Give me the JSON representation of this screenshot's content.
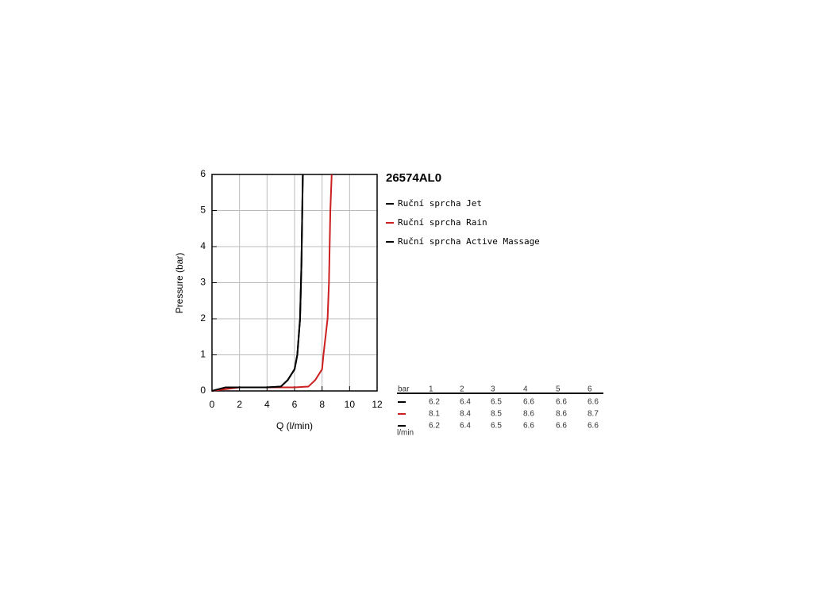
{
  "chart_data": {
    "type": "line",
    "title": "26574AL0",
    "xlabel": "Q (l/min)",
    "ylabel": "Pressure (bar)",
    "xlim": [
      0,
      12
    ],
    "ylim": [
      0,
      6
    ],
    "xticks": [
      0,
      2,
      4,
      6,
      8,
      10,
      12
    ],
    "yticks": [
      0,
      1,
      2,
      3,
      4,
      5,
      6
    ],
    "grid": true,
    "series": [
      {
        "name": "Ruční sprcha Jet",
        "color": "#000000",
        "x": [
          0,
          1,
          2,
          3,
          4,
          5,
          5.5,
          6,
          6.2,
          6.4,
          6.5,
          6.6
        ],
        "values": [
          0,
          0.1,
          0.1,
          0.1,
          0.1,
          0.12,
          0.3,
          0.6,
          1,
          2,
          3.5,
          6
        ]
      },
      {
        "name": "Ruční sprcha Rain",
        "color": "#cc1f1f",
        "x": [
          0,
          1,
          2,
          3,
          4,
          5,
          6,
          7,
          7.5,
          8,
          8.1,
          8.4,
          8.5,
          8.6,
          8.7
        ],
        "values": [
          0,
          0.05,
          0.1,
          0.1,
          0.1,
          0.1,
          0.1,
          0.12,
          0.3,
          0.6,
          1,
          2,
          3,
          5,
          6
        ]
      },
      {
        "name": "Ruční sprcha Active Massage",
        "color": "#000000",
        "x": [
          0,
          1,
          2,
          3,
          4,
          5,
          5.5,
          6,
          6.2,
          6.4,
          6.5,
          6.6
        ],
        "values": [
          0,
          0.1,
          0.1,
          0.1,
          0.1,
          0.12,
          0.3,
          0.6,
          1,
          2,
          3.5,
          6
        ]
      }
    ]
  },
  "table": {
    "header": [
      "bar",
      1,
      2,
      3,
      4,
      5,
      6
    ],
    "unit": "l/min",
    "rows": [
      {
        "color": "#000000",
        "values": [
          6.2,
          6.4,
          6.5,
          6.6,
          6.6,
          6.6
        ]
      },
      {
        "color": "#cc1f1f",
        "values": [
          8.1,
          8.4,
          8.5,
          8.6,
          8.6,
          8.7
        ]
      },
      {
        "color": "#000000",
        "values": [
          6.2,
          6.4,
          6.5,
          6.6,
          6.6,
          6.6
        ]
      }
    ]
  }
}
